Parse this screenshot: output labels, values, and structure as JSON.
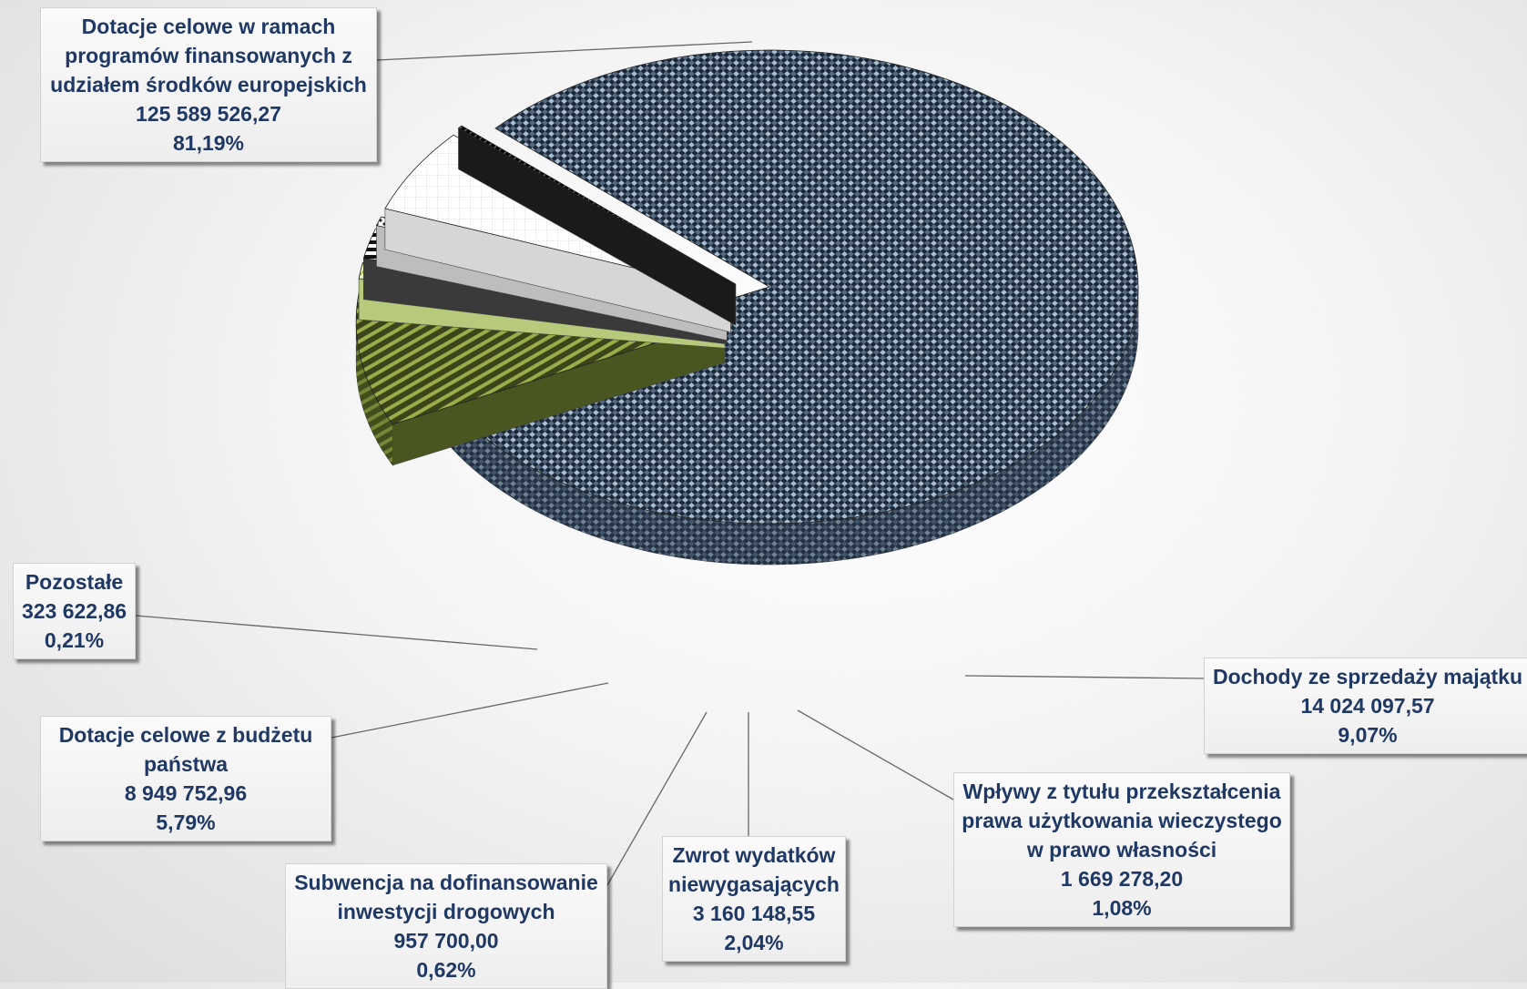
{
  "chart_data": {
    "type": "pie",
    "title": "",
    "slices": [
      {
        "label": "Dotacje celowe w ramach programów finansowanych z udziałem środków europejskich",
        "value_text": "125 589 526,27",
        "value": 125589526.27,
        "pct_text": "81,19%",
        "pct": 81.19
      },
      {
        "label": "Dochody ze sprzedaży majątku",
        "value_text": "14 024 097,57",
        "value": 14024097.57,
        "pct_text": "9,07%",
        "pct": 9.07
      },
      {
        "label": "Wpływy z tytułu przekształcenia prawa użytkowania wieczystego w prawo własności",
        "value_text": "1 669 278,20",
        "value": 1669278.2,
        "pct_text": "1,08%",
        "pct": 1.08
      },
      {
        "label": "Zwrot wydatków niewygasających",
        "value_text": "3 160 148,55",
        "value": 3160148.55,
        "pct_text": "2,04%",
        "pct": 2.04
      },
      {
        "label": "Subwencja na dofinansowanie inwestycji drogowych",
        "value_text": "957 700,00",
        "value": 957700.0,
        "pct_text": "0,62%",
        "pct": 0.62
      },
      {
        "label": "Dotacje celowe z budżetu państwa",
        "value_text": "8 949 752,96",
        "value": 8949752.96,
        "pct_text": "5,79%",
        "pct": 5.79
      },
      {
        "label": "Pozostałe",
        "value_text": "323 622,86",
        "value": 323622.86,
        "pct_text": "0,21%",
        "pct": 0.21
      }
    ],
    "legend": "none",
    "data_labels": "callouts"
  },
  "labels": [
    {
      "lines": [
        "Dotacje celowe w ramach",
        "programów finansowanych z",
        "udziałem środków europejskich",
        "125 589 526,27",
        "81,19%"
      ]
    },
    {
      "lines": [
        "Dochody ze sprzedaży majątku",
        "14 024 097,57",
        "9,07%"
      ]
    },
    {
      "lines": [
        "Wpływy z tytułu przekształcenia",
        "prawa użytkowania wieczystego",
        "w prawo własności",
        "1 669 278,20",
        "1,08%"
      ]
    },
    {
      "lines": [
        "Zwrot wydatków",
        "niewygasających",
        "3 160 148,55",
        "2,04%"
      ]
    },
    {
      "lines": [
        "Subwencja na dofinansowanie",
        "inwestycji drogowych",
        "957 700,00",
        "0,62%"
      ]
    },
    {
      "lines": [
        "Dotacje celowe z budżetu",
        "państwa",
        "8 949 752,96",
        "5,79%"
      ]
    },
    {
      "lines": [
        "Pozostałe",
        "323 622,86",
        "0,21%"
      ]
    }
  ],
  "colors": {
    "navy": "#1b2838",
    "light_blue": "#9fb3c8",
    "olive": "#6b7a2a",
    "olive_light": "#c5d87a",
    "white": "#ffffff",
    "black": "#111111",
    "label_text": "#1f3864"
  }
}
